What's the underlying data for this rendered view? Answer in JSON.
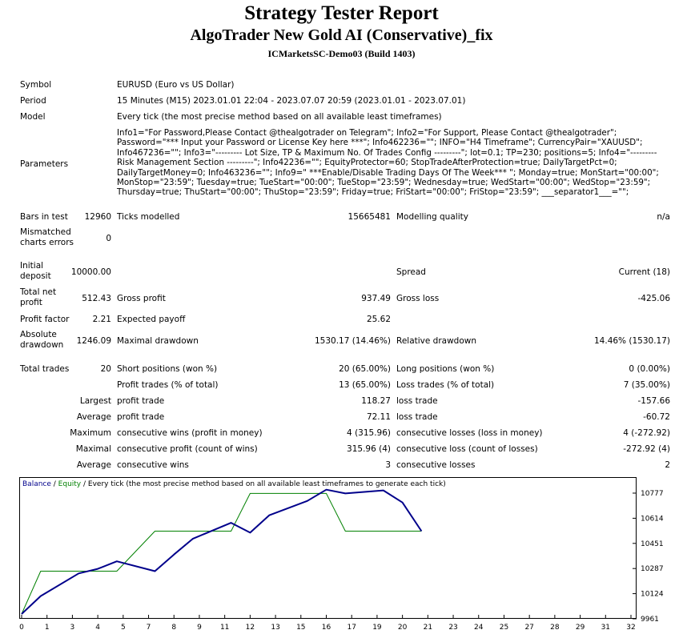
{
  "report": {
    "title": "Strategy Tester Report",
    "ea_name": "AlgoTrader New Gold AI (Conservative)_fix",
    "server": "ICMarketsSC-Demo03 (Build 1403)"
  },
  "info": {
    "symbol_label": "Symbol",
    "symbol": "EURUSD (Euro vs US Dollar)",
    "period_label": "Period",
    "period": "15 Minutes (M15) 2023.01.01 22:04 - 2023.07.07 20:59 (2023.01.01 - 2023.07.01)",
    "model_label": "Model",
    "model": "Every tick (the most precise method based on all available least timeframes)",
    "parameters_label": "Parameters",
    "parameters": "Info1=\"For Password,Please Contact @thealgotrader on Telegram\"; Info2=\"For Support, Please Contact @thealgotrader\"; Password=\"*** Input your Password or License Key here ***\"; Info462236=\"\"; INFO=\"H4 Timeframe\"; CurrencyPair=\"XAUUSD\"; Info467236=\"\"; Info3=\"--------- Lot Size, TP & Maximum No. Of Trades Config ---------\"; lot=0.1; TP=230; positions=5; Info4=\"--------- Risk Management Section ---------\"; Info42236=\"\"; EquityProtector=60; StopTradeAfterProtection=true; DailyTargetPct=0; DailyTargetMoney=0; Info463236=\"\"; Info9=\" ***Enable/Disable Trading Days Of The Week*** \"; Monday=true; MonStart=\"00:00\"; MonStop=\"23:59\"; Tuesday=true; TueStart=\"00:00\"; TueStop=\"23:59\"; Wednesday=true; WedStart=\"00:00\"; WedStop=\"23:59\"; Thursday=true; ThuStart=\"00:00\"; ThuStop=\"23:59\"; Friday=true; FriStart=\"00:00\"; FriStop=\"23:59\"; ___separator1___=\"\";"
  },
  "stats": {
    "bars_label": "Bars in test",
    "bars": "12960",
    "ticks_label": "Ticks modelled",
    "ticks": "15665481",
    "quality_label": "Modelling quality",
    "quality": "n/a",
    "mismatch_label": "Mismatched charts errors",
    "mismatch": "0",
    "deposit_label": "Initial deposit",
    "deposit": "10000.00",
    "spread_label": "Spread",
    "spread": "Current (18)",
    "net_label": "Total net profit",
    "net": "512.43",
    "gross_profit_label": "Gross profit",
    "gross_profit": "937.49",
    "gross_loss_label": "Gross loss",
    "gross_loss": "-425.06",
    "pf_label": "Profit factor",
    "pf": "2.21",
    "payoff_label": "Expected payoff",
    "payoff": "25.62",
    "abs_dd_label": "Absolute drawdown",
    "abs_dd": "1246.09",
    "max_dd_label": "Maximal drawdown",
    "max_dd": "1530.17 (14.46%)",
    "rel_dd_label": "Relative drawdown",
    "rel_dd": "14.46% (1530.17)",
    "trades_label": "Total trades",
    "trades": "20",
    "short_label": "Short positions (won %)",
    "short": "20 (65.00%)",
    "long_label": "Long positions (won %)",
    "long": "0 (0.00%)",
    "profit_trades_label": "Profit trades (% of total)",
    "profit_trades": "13 (65.00%)",
    "loss_trades_label": "Loss trades (% of total)",
    "loss_trades": "7 (35.00%)",
    "largest_label": "Largest",
    "largest_profit_label": "profit trade",
    "largest_profit": "118.27",
    "largest_loss_label": "loss trade",
    "largest_loss": "-157.66",
    "average_label": "Average",
    "average_profit_label": "profit trade",
    "average_profit": "72.11",
    "average_loss_label": "loss trade",
    "average_loss": "-60.72",
    "maximum_label": "Maximum",
    "max_cons_wins_label": "consecutive wins (profit in money)",
    "max_cons_wins": "4 (315.96)",
    "max_cons_losses_label": "consecutive losses (loss in money)",
    "max_cons_losses": "4 (-272.92)",
    "maximal_label": "Maximal",
    "maximal_cons_profit_label": "consecutive profit (count of wins)",
    "maximal_cons_profit": "315.96 (4)",
    "maximal_cons_loss_label": "consecutive loss (count of losses)",
    "maximal_cons_loss": "-272.92 (4)",
    "average2_label": "Average",
    "avg_cons_wins_label": "consecutive wins",
    "avg_cons_wins": "3",
    "avg_cons_losses_label": "consecutive losses",
    "avg_cons_losses": "2"
  },
  "chart_data": {
    "type": "line",
    "legend": {
      "balance": "Balance",
      "sep1": " / ",
      "equity": "Equity",
      "sep2": " / ",
      "rest": "Every tick (the most precise method based on all available least timeframes to generate each tick)"
    },
    "colors": {
      "balance": "#00008b",
      "equity": "#008000",
      "axis": "#000000"
    },
    "x_ticks": [
      "0",
      "1",
      "3",
      "4",
      "5",
      "7",
      "8",
      "9",
      "11",
      "12",
      "13",
      "15",
      "16",
      "17",
      "19",
      "20",
      "21",
      "23",
      "24",
      "25",
      "27",
      "28",
      "29",
      "31",
      "32"
    ],
    "y_ticks": [
      "10777",
      "10614",
      "10451",
      "10287",
      "10124",
      "9961"
    ],
    "xlim": [
      0,
      32
    ],
    "ylim": [
      9961,
      10815
    ],
    "series": [
      {
        "name": "Balance",
        "x": [
          0,
          1,
          3,
          4,
          5,
          7,
          8,
          9,
          11,
          12,
          13,
          15,
          16,
          17,
          19,
          20,
          21
        ],
        "y": [
          9961,
          10080,
          10230,
          10260,
          10310,
          10245,
          10355,
          10460,
          10565,
          10500,
          10615,
          10710,
          10785,
          10760,
          10780,
          10700,
          10510
        ]
      },
      {
        "name": "Equity",
        "x": [
          0,
          1,
          3,
          4,
          5,
          7,
          8,
          9,
          11,
          12,
          13,
          15,
          16,
          17,
          19,
          20,
          21
        ],
        "y": [
          9961,
          10245,
          10245,
          10245,
          10245,
          10510,
          10510,
          10510,
          10510,
          10760,
          10760,
          10760,
          10760,
          10510,
          10510,
          10510,
          10510
        ]
      }
    ]
  }
}
